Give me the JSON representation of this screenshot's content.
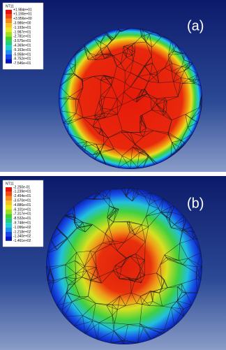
{
  "panels": [
    {
      "label": "(a)",
      "legend": {
        "title": "NT11",
        "values": [
          "+1.984e+01",
          "+1.190e+01",
          "+3.956e+00",
          "-3.986e+00",
          "-1.193e+01",
          "-1.987e+01",
          "-2.781e+01",
          "-3.575e+01",
          "-4.369e+01",
          "-5.163e+01",
          "-5.958e+01",
          "-6.752e+01",
          "-7.546e+01"
        ]
      }
    },
    {
      "label": "(b)",
      "legend": {
        "title": "NT11",
        "values": [
          "-2.250e-01",
          "-1.239e+01",
          "-2.454e+01",
          "-3.670e+01",
          "-4.886e+01",
          "-6.101e+01",
          "-7.317e+01",
          "-8.532e+01",
          "-9.748e+01",
          "-1.096e+02",
          "-1.218e+02",
          "-1.340e+02",
          "-1.461e+02"
        ]
      }
    }
  ]
}
